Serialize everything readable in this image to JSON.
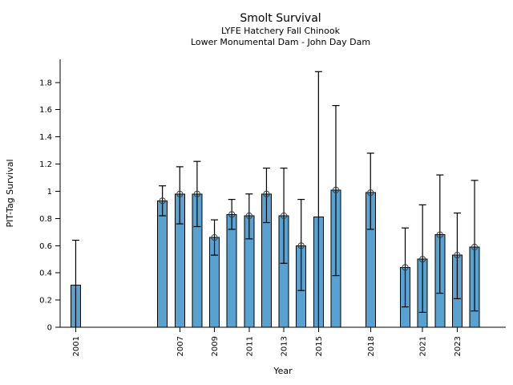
{
  "chart_data": {
    "type": "bar",
    "title": "Smolt Survival",
    "subtitle1": "LYFE Hatchery Fall Chinook",
    "subtitle2": "Lower Monumental Dam - John Day Dam",
    "xlabel": "Year",
    "ylabel": "PIT-Tag Survival",
    "grid": false,
    "legend": "none",
    "bar_color": "#58a2d1",
    "bar_edge_color": "#000000",
    "error_color": "#000000",
    "marker_edge_color": "#3a3a3a",
    "xlim": [
      2000.1,
      2025.8
    ],
    "ylim": [
      0,
      1.97
    ],
    "yticks": [
      0,
      0.2,
      0.4,
      0.6,
      0.8,
      1.0,
      1.2,
      1.4,
      1.6,
      1.8
    ],
    "ytick_labels": [
      "0",
      "0.2",
      "0.4",
      "0.6",
      "0.8",
      "1",
      "1.2",
      "1.4",
      "1.6",
      "1.8"
    ],
    "xtick_years": [
      2001,
      2007,
      2009,
      2011,
      2013,
      2015,
      2018,
      2021,
      2023
    ],
    "bars": [
      {
        "year": 2001,
        "value": 0.31,
        "ci_lo": 0.0,
        "ci_hi": 0.64,
        "marker": false
      },
      {
        "year": 2006,
        "value": 0.93,
        "ci_lo": 0.82,
        "ci_hi": 1.04,
        "marker": true
      },
      {
        "year": 2007,
        "value": 0.98,
        "ci_lo": 0.76,
        "ci_hi": 1.18,
        "marker": true
      },
      {
        "year": 2008,
        "value": 0.98,
        "ci_lo": 0.74,
        "ci_hi": 1.22,
        "marker": true
      },
      {
        "year": 2009,
        "value": 0.66,
        "ci_lo": 0.53,
        "ci_hi": 0.79,
        "marker": true
      },
      {
        "year": 2010,
        "value": 0.83,
        "ci_lo": 0.72,
        "ci_hi": 0.94,
        "marker": true
      },
      {
        "year": 2011,
        "value": 0.82,
        "ci_lo": 0.65,
        "ci_hi": 0.98,
        "marker": true
      },
      {
        "year": 2012,
        "value": 0.98,
        "ci_lo": 0.77,
        "ci_hi": 1.17,
        "marker": true
      },
      {
        "year": 2013,
        "value": 0.82,
        "ci_lo": 0.47,
        "ci_hi": 1.17,
        "marker": true
      },
      {
        "year": 2014,
        "value": 0.6,
        "ci_lo": 0.27,
        "ci_hi": 0.94,
        "marker": true
      },
      {
        "year": 2015,
        "value": 0.81,
        "ci_lo": 0.0,
        "ci_hi": 1.88,
        "marker": false
      },
      {
        "year": 2016,
        "value": 1.01,
        "ci_lo": 0.38,
        "ci_hi": 1.63,
        "marker": true
      },
      {
        "year": 2018,
        "value": 0.99,
        "ci_lo": 0.72,
        "ci_hi": 1.28,
        "marker": true
      },
      {
        "year": 2020,
        "value": 0.44,
        "ci_lo": 0.15,
        "ci_hi": 0.73,
        "marker": true
      },
      {
        "year": 2021,
        "value": 0.5,
        "ci_lo": 0.11,
        "ci_hi": 0.9,
        "marker": true
      },
      {
        "year": 2022,
        "value": 0.68,
        "ci_lo": 0.25,
        "ci_hi": 1.12,
        "marker": true
      },
      {
        "year": 2023,
        "value": 0.53,
        "ci_lo": 0.21,
        "ci_hi": 0.84,
        "marker": true
      },
      {
        "year": 2024,
        "value": 0.59,
        "ci_lo": 0.12,
        "ci_hi": 1.08,
        "marker": true
      }
    ]
  }
}
